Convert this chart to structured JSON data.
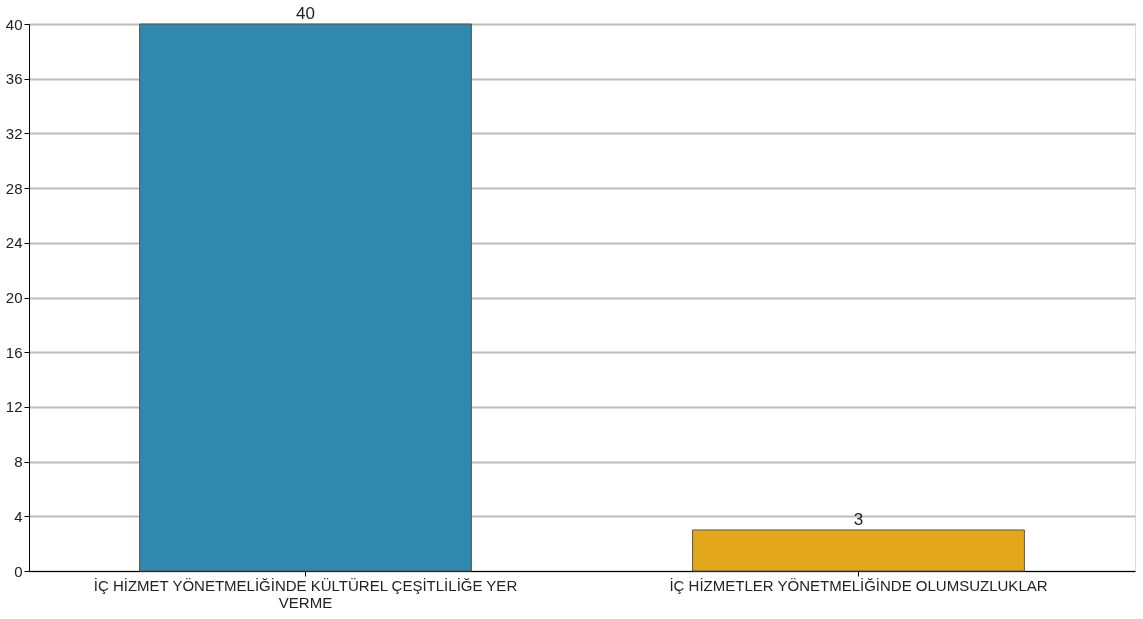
{
  "chart_data": {
    "type": "bar",
    "categories": [
      "İÇ HİZMET YÖNETMELİĞİNDE KÜLTÜREL ÇEŞİTLİLİĞE YER VERME",
      "İÇ HİZMETLER YÖNETMELİĞİNDE OLUMSUZLUKLAR"
    ],
    "values": [
      40,
      3
    ],
    "colors": [
      "#2f88ad",
      "#e2a71a"
    ],
    "ylim": [
      0,
      40
    ],
    "yticks": [
      0,
      4,
      8,
      12,
      16,
      20,
      24,
      28,
      32,
      36,
      40
    ],
    "grid": "y",
    "data_labels": true
  }
}
